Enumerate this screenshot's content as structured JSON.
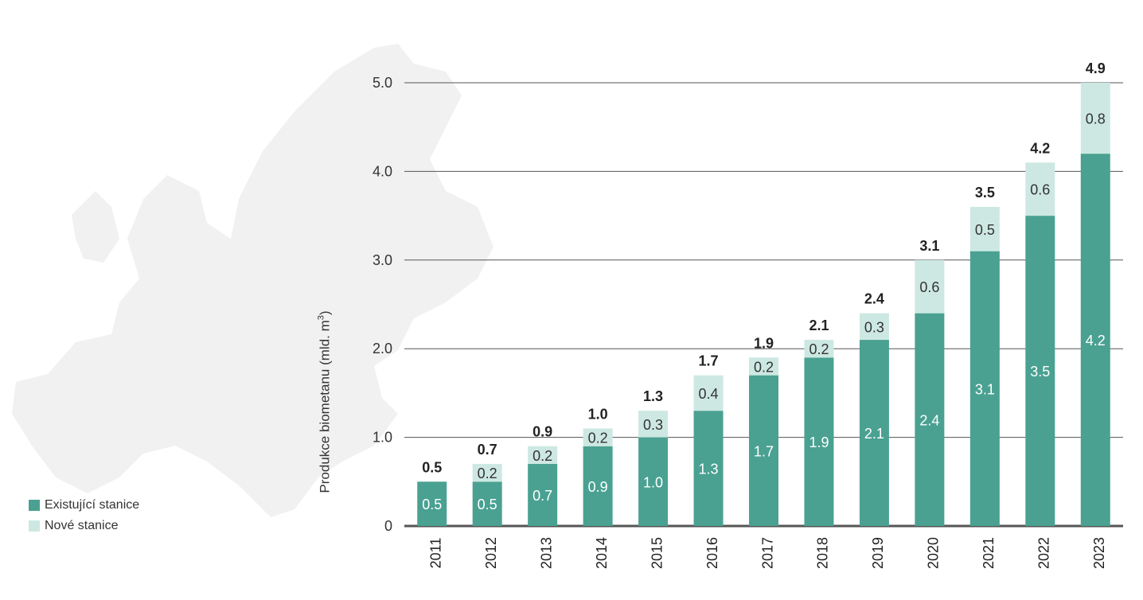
{
  "chart_data": {
    "type": "bar",
    "stacked": true,
    "categories": [
      "2011",
      "2012",
      "2013",
      "2014",
      "2015",
      "2016",
      "2017",
      "2018",
      "2019",
      "2020",
      "2021",
      "2022",
      "2023"
    ],
    "series": [
      {
        "name": "Existující stanice",
        "values": [
          0.5,
          0.5,
          0.7,
          0.9,
          1.0,
          1.3,
          1.7,
          1.9,
          2.1,
          2.4,
          3.1,
          3.5,
          4.2
        ],
        "color": "#4aa191"
      },
      {
        "name": "Nové stanice",
        "values": [
          0,
          0.2,
          0.2,
          0.2,
          0.3,
          0.4,
          0.2,
          0.2,
          0.3,
          0.6,
          0.5,
          0.6,
          0.8
        ],
        "color": "#cde8e2"
      }
    ],
    "totals": [
      "0.5",
      "0.7",
      "0.9",
      "1.0",
      "1.3",
      "1.7",
      "1.9",
      "2.1",
      "2.4",
      "3.1",
      "3.5",
      "4.2",
      "4.9"
    ],
    "existing_labels": [
      "0.5",
      "0.5",
      "0.7",
      "0.9",
      "1.0",
      "1.3",
      "1.7",
      "1.9",
      "2.1",
      "2.4",
      "3.1",
      "3.5",
      "4.2"
    ],
    "new_labels": [
      "",
      "0.2",
      "0.2",
      "0.2",
      "0.3",
      "0.4",
      "0.2",
      "0.2",
      "0.3",
      "0.6",
      "0.5",
      "0.6",
      "0.8"
    ],
    "yticks": [
      "0",
      "1.0",
      "2.0",
      "3.0",
      "4.0",
      "5.0"
    ],
    "ylim": [
      0,
      5
    ],
    "ylabel_main": "Produkce biometanu (mld. m",
    "ylabel_sup": "3",
    "ylabel_end": ")",
    "grid": true,
    "legend_position": "bottom-left"
  },
  "legend": {
    "existing": "Existující stanice",
    "new": "Nové stanice"
  }
}
